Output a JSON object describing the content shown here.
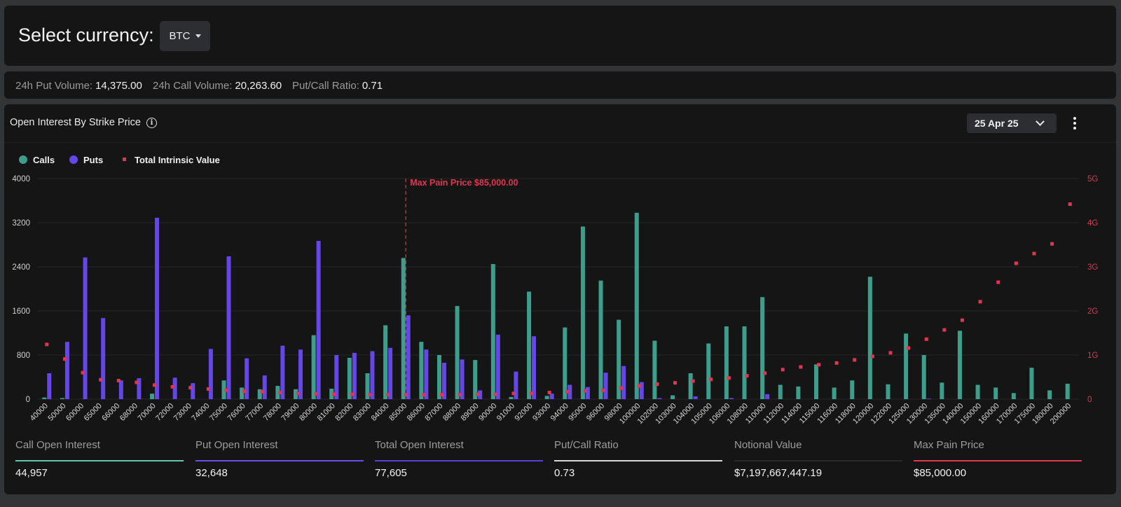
{
  "header": {
    "select_label": "Select currency:",
    "currency": "BTC"
  },
  "volume": [
    {
      "label": "24h Put Volume:",
      "value": "14,375.00"
    },
    {
      "label": "24h Call Volume:",
      "value": "20,263.60"
    },
    {
      "label": "Put/Call Ratio:",
      "value": "0.71"
    }
  ],
  "chart_panel": {
    "title": "Open Interest By Strike Price",
    "expiry": "25 Apr 25"
  },
  "colors": {
    "calls": "#3e9e8c",
    "puts": "#6447e6",
    "intrinsic": "#e0364f",
    "panel": "#151516",
    "page": "#333436"
  },
  "chart_data": {
    "type": "bar",
    "legend": [
      "Calls",
      "Puts",
      "Total Intrinsic Value"
    ],
    "legend_position": "top-left",
    "annotation": "Max Pain Price $85,000.00",
    "annotation_at": "85000",
    "y_left": {
      "ticks": [
        "0",
        "800",
        "1600",
        "2400",
        "3200",
        "4000"
      ],
      "range": [
        0,
        4000
      ]
    },
    "y_right": {
      "ticks": [
        "0",
        "1G",
        "2G",
        "3G",
        "4G",
        "5G"
      ],
      "range": [
        0,
        5
      ]
    },
    "grid": true,
    "categories": [
      "40000",
      "50000",
      "60000",
      "65000",
      "66000",
      "68000",
      "70000",
      "72000",
      "73000",
      "74000",
      "75000",
      "76000",
      "77000",
      "78000",
      "79000",
      "80000",
      "81000",
      "82000",
      "83000",
      "84000",
      "85000",
      "86000",
      "87000",
      "88000",
      "89000",
      "90000",
      "91000",
      "92000",
      "93000",
      "94000",
      "95000",
      "96000",
      "98000",
      "100000",
      "102000",
      "103000",
      "104000",
      "105000",
      "106000",
      "108000",
      "110000",
      "112000",
      "114000",
      "115000",
      "116000",
      "118000",
      "120000",
      "122000",
      "125000",
      "130000",
      "135000",
      "140000",
      "150000",
      "160000",
      "170000",
      "175000",
      "180000",
      "200000"
    ],
    "series": [
      {
        "name": "Calls",
        "axis": "left",
        "values": [
          30,
          20,
          0,
          0,
          0,
          0,
          100,
          0,
          0,
          0,
          340,
          210,
          180,
          240,
          180,
          1160,
          190,
          750,
          470,
          1340,
          2560,
          1040,
          800,
          1690,
          710,
          2450,
          40,
          1950,
          60,
          1300,
          3130,
          2150,
          1440,
          3380,
          1060,
          70,
          470,
          1010,
          1320,
          1320,
          1850,
          260,
          230,
          630,
          210,
          340,
          2220,
          270,
          1190,
          800,
          300,
          1240,
          260,
          210,
          110,
          570,
          160,
          280
        ]
      },
      {
        "name": "Puts",
        "axis": "left",
        "values": [
          470,
          1040,
          2570,
          1470,
          340,
          380,
          3290,
          390,
          290,
          910,
          2590,
          740,
          430,
          970,
          900,
          2870,
          800,
          840,
          870,
          930,
          1520,
          900,
          660,
          720,
          160,
          1170,
          500,
          1140,
          100,
          260,
          220,
          480,
          600,
          310,
          20,
          0,
          50,
          0,
          20,
          0,
          90,
          0,
          0,
          0,
          0,
          0,
          0,
          0,
          0,
          10,
          0,
          0,
          0,
          0,
          0,
          0,
          0,
          0
        ]
      },
      {
        "name": "Total Intrinsic Value",
        "axis": "right",
        "unit": "G",
        "values": [
          1.24,
          0.91,
          0.6,
          0.44,
          0.42,
          0.38,
          0.32,
          0.28,
          0.26,
          0.23,
          0.2,
          0.18,
          0.17,
          0.15,
          0.13,
          0.12,
          0.11,
          0.11,
          0.1,
          0.1,
          0.1,
          0.1,
          0.1,
          0.1,
          0.11,
          0.11,
          0.13,
          0.13,
          0.15,
          0.17,
          0.19,
          0.2,
          0.25,
          0.3,
          0.34,
          0.37,
          0.41,
          0.45,
          0.48,
          0.53,
          0.59,
          0.67,
          0.73,
          0.78,
          0.82,
          0.89,
          0.97,
          1.05,
          1.16,
          1.36,
          1.57,
          1.79,
          2.21,
          2.65,
          3.08,
          3.3,
          3.52,
          4.42
        ]
      }
    ]
  },
  "stats": [
    {
      "label": "Call Open Interest",
      "value": "44,957",
      "color": "#5ec8b2"
    },
    {
      "label": "Put Open Interest",
      "value": "32,648",
      "color": "#6b4de8"
    },
    {
      "label": "Total Open Interest",
      "value": "77,605",
      "color": "#5a3fd9"
    },
    {
      "label": "Put/Call Ratio",
      "value": "0.73",
      "color": "#d7d7d7"
    },
    {
      "label": "Notional Value",
      "value": "$7,197,667,447.19",
      "color": "#2a2a2c"
    },
    {
      "label": "Max Pain Price",
      "value": "$85,000.00",
      "color": "#e0364f"
    }
  ]
}
